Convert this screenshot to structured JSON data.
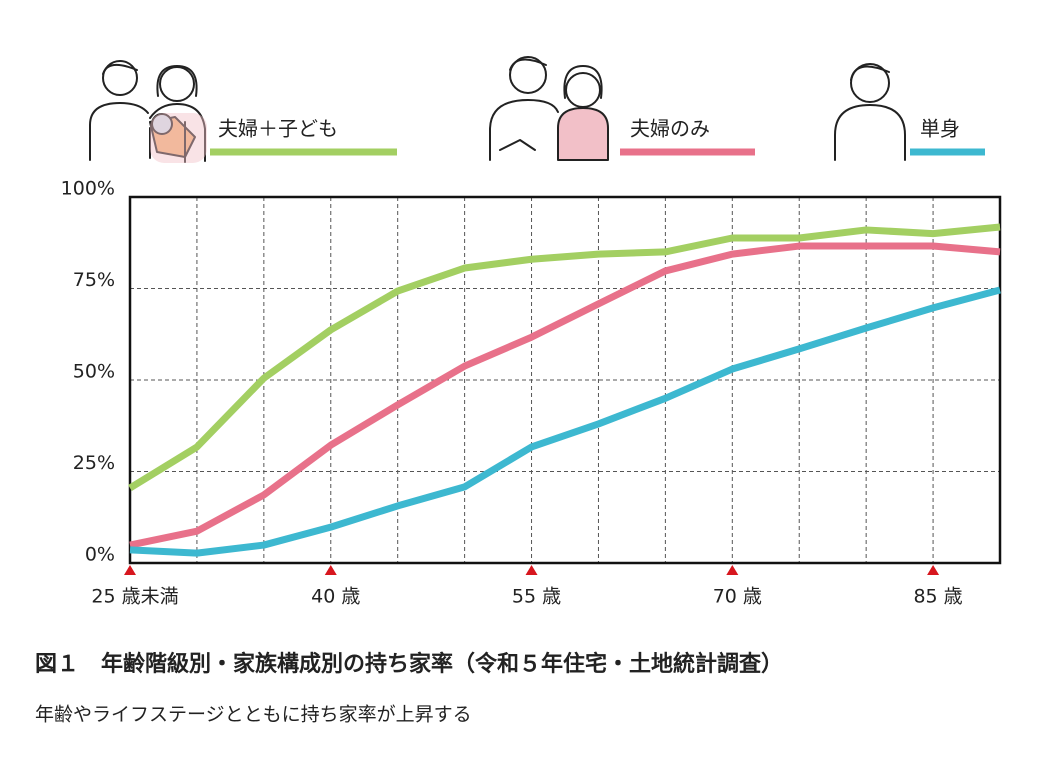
{
  "chart_data": {
    "type": "line",
    "title": "図１　年齢階級別・家族構成別の持ち家率（令和５年住宅・土地統計調査）",
    "subtitle": "年齢やライフステージとともに持ち家率が上昇する",
    "categories": [
      "25 歳未満",
      null,
      null,
      "40 歳",
      null,
      null,
      "55 歳",
      null,
      null,
      "70 歳",
      null,
      null,
      "85 歳",
      null
    ],
    "series": [
      {
        "name": "夫婦＋子ども",
        "color": "#a3cf62",
        "values": [
          20.5,
          31.7,
          50.5,
          63.7,
          74.3,
          80.6,
          83,
          84.4,
          85,
          88.8,
          88.8,
          91,
          90,
          91.8
        ]
      },
      {
        "name": "夫婦のみ",
        "color": "#e8718a",
        "values": [
          4.9,
          8.7,
          18.6,
          32.2,
          43.2,
          53.8,
          61.7,
          70.8,
          79.8,
          84.4,
          86.6,
          86.6,
          86.6,
          85
        ]
      },
      {
        "name": "単身",
        "color": "#3db8d0",
        "values": [
          3.6,
          2.7,
          4.9,
          9.8,
          15.6,
          20.8,
          31.7,
          38,
          45,
          53,
          58.5,
          64.2,
          69.7,
          74.6
        ]
      }
    ],
    "ylim": [
      0,
      100
    ],
    "yticks": [
      {
        "value": 0,
        "label": "0%"
      },
      {
        "value": 25,
        "label": "25%"
      },
      {
        "value": 50,
        "label": "50%"
      },
      {
        "value": 75,
        "label": "75%"
      },
      {
        "value": 100,
        "label": "100%"
      }
    ],
    "grid": true
  }
}
